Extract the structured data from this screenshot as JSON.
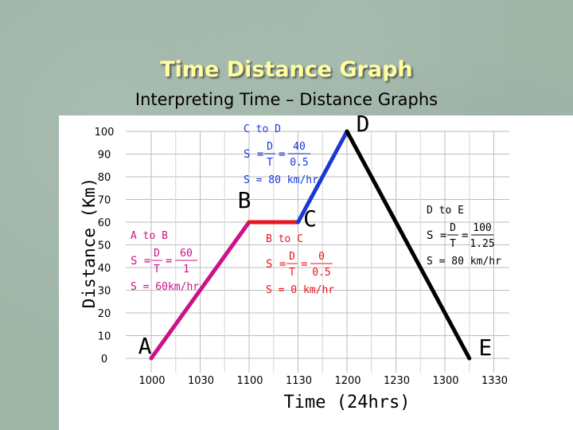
{
  "slide": {
    "title": "Time Distance Graph",
    "subtitle": "Interpreting Time – Distance Graphs"
  },
  "chart_data": {
    "type": "line",
    "xlabel": "Time (24hrs)",
    "ylabel": "Distance (Km)",
    "x_ticks": [
      "1000",
      "1030",
      "1100",
      "1130",
      "1200",
      "1230",
      "1300",
      "1330"
    ],
    "y_ticks": [
      "0",
      "10",
      "20",
      "30",
      "40",
      "50",
      "60",
      "70",
      "80",
      "90",
      "100"
    ],
    "ylim": [
      0,
      100
    ],
    "grid": true,
    "segments": [
      {
        "from": "A",
        "to": "B",
        "x": [
          "1000",
          "1100"
        ],
        "y": [
          0,
          60
        ],
        "color": "#cc1288"
      },
      {
        "from": "B",
        "to": "C",
        "x": [
          "1100",
          "1130"
        ],
        "y": [
          60,
          60
        ],
        "color": "#e8141e"
      },
      {
        "from": "C",
        "to": "D",
        "x": [
          "1130",
          "1200"
        ],
        "y": [
          60,
          100
        ],
        "color": "#1a38d6"
      },
      {
        "from": "D",
        "to": "E",
        "x": [
          "1200",
          "1315"
        ],
        "y": [
          100,
          0
        ],
        "color": "#000000"
      }
    ],
    "points": [
      {
        "label": "A",
        "x": "1000",
        "y": 0
      },
      {
        "label": "B",
        "x": "1100",
        "y": 60
      },
      {
        "label": "C",
        "x": "1130",
        "y": 60
      },
      {
        "label": "D",
        "x": "1200",
        "y": 100
      },
      {
        "label": "E",
        "x": "1315",
        "y": 0
      }
    ],
    "annotations": [
      {
        "id": "a-to-b",
        "color": "#cc1288",
        "heading": "A to B",
        "formula_D": "D",
        "formula_T": "T",
        "num": "60",
        "den": "1",
        "result": "S = 60km/hr"
      },
      {
        "id": "b-to-c",
        "color": "#e8141e",
        "heading": "B to C",
        "formula_D": "D",
        "formula_T": "T",
        "num": "0",
        "den": "0.5",
        "result": "S = 0 km/hr"
      },
      {
        "id": "c-to-d",
        "color": "#1a38d6",
        "heading": "C to D",
        "formula_D": "D",
        "formula_T": "T",
        "num": "40",
        "den": "0.5",
        "result": "S = 80 km/hr"
      },
      {
        "id": "d-to-e",
        "color": "#000000",
        "heading": "D to E",
        "formula_D": "D",
        "formula_T": "T",
        "num": "100",
        "den": "1.25",
        "result": "S = 80 km/hr"
      }
    ],
    "formula_prefix": "S =",
    "formula_eq": "="
  }
}
